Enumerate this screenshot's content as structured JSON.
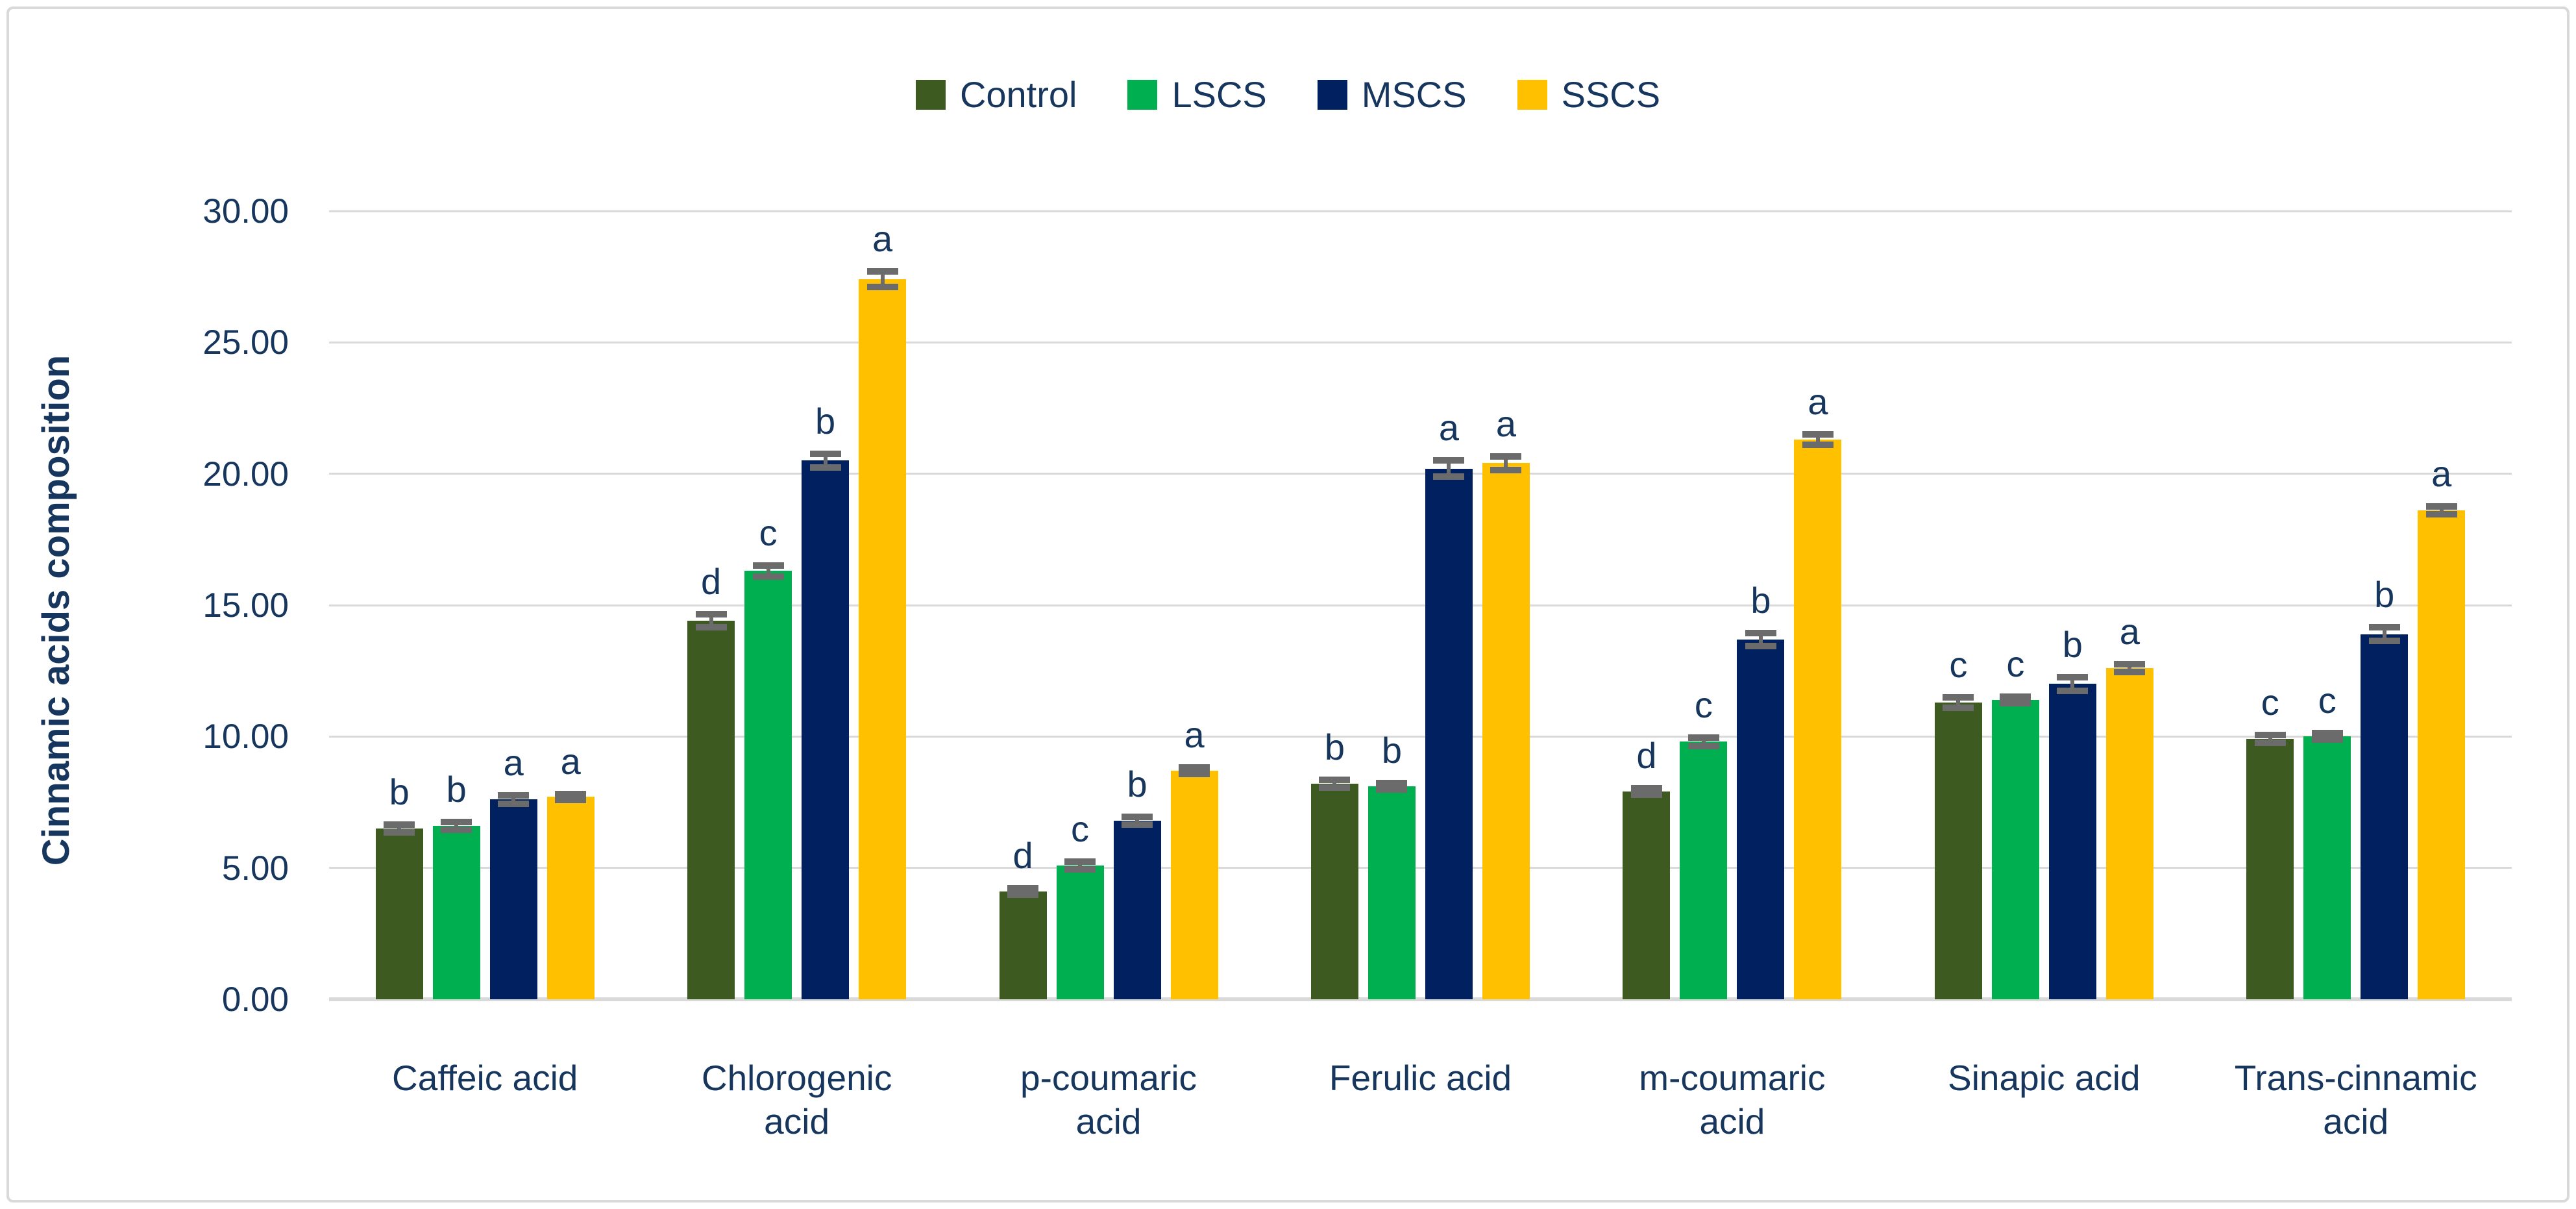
{
  "chart_data": {
    "type": "bar",
    "title": "",
    "ylabel": "Cinnamic acids composition",
    "xlabel": "",
    "ylim": [
      0,
      30
    ],
    "ytick_step": 5,
    "ytick_labels": [
      "0.00",
      "5.00",
      "10.00",
      "15.00",
      "20.00",
      "25.00",
      "30.00"
    ],
    "grid": true,
    "legend_position": "top",
    "categories": [
      "Caffeic acid",
      "Chlorogenic acid",
      "p-coumaric acid",
      "Ferulic acid",
      "m-coumaric acid",
      "Sinapic acid",
      "Trans-cinnamic acid"
    ],
    "series": [
      {
        "name": "Control",
        "color": "#3D5A21",
        "values": [
          6.5,
          14.4,
          4.1,
          8.2,
          7.9,
          11.3,
          9.9
        ],
        "errors": [
          0.15,
          0.25,
          0.12,
          0.15,
          0.12,
          0.2,
          0.15
        ],
        "letters": [
          "b",
          "d",
          "d",
          "b",
          "d",
          "c",
          "c"
        ]
      },
      {
        "name": "LSCS",
        "color": "#00B050",
        "values": [
          6.6,
          16.3,
          5.1,
          8.1,
          9.8,
          11.4,
          10.0
        ],
        "errors": [
          0.15,
          0.2,
          0.15,
          0.12,
          0.15,
          0.12,
          0.12
        ],
        "letters": [
          "b",
          "c",
          "c",
          "b",
          "c",
          "c",
          "c"
        ]
      },
      {
        "name": "MSCS",
        "color": "#002060",
        "values": [
          7.6,
          20.5,
          6.8,
          20.2,
          13.7,
          12.0,
          13.9
        ],
        "errors": [
          0.15,
          0.25,
          0.15,
          0.3,
          0.25,
          0.25,
          0.25
        ],
        "letters": [
          "a",
          "b",
          "b",
          "a",
          "b",
          "b",
          "b"
        ]
      },
      {
        "name": "SSCS",
        "color": "#FFC000",
        "values": [
          7.7,
          27.4,
          8.7,
          20.4,
          21.3,
          12.6,
          18.6
        ],
        "errors": [
          0.12,
          0.3,
          0.12,
          0.25,
          0.2,
          0.15,
          0.15
        ],
        "letters": [
          "a",
          "a",
          "a",
          "a",
          "a",
          "a",
          "a"
        ]
      }
    ]
  },
  "theme": {
    "text_color": "#17365D",
    "grid_color": "#D9D9D9",
    "error_bar_color": "#6B6B6B",
    "frame_border_color": "#D9D9D9",
    "background_color": "#FFFFFF"
  }
}
